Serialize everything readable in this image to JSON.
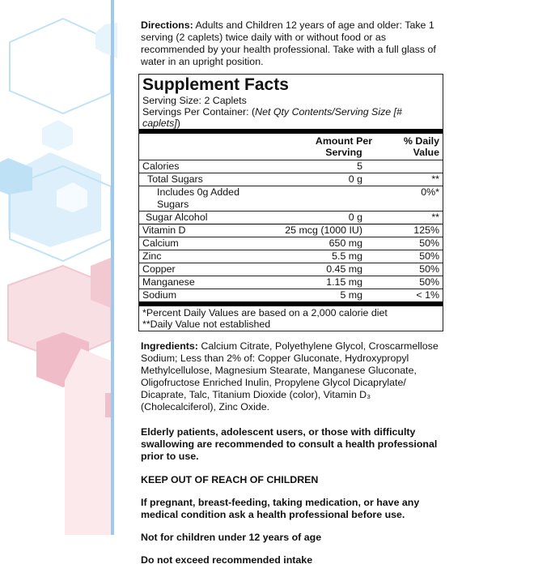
{
  "directions": {
    "label": "Directions:",
    "text": " Adults and Children 12 years of age and older: Take 1 serving (2 caplets) twice daily with or without food or as recommended by your health professional. Take with a full glass of water in an upright position."
  },
  "facts": {
    "title": "Supplement Facts",
    "serving_size": "Serving Size: 2 Caplets",
    "servings_per_container_label": "Servings Per Container: (",
    "servings_per_container_value": "Net Qty Contents/Serving Size [# caplets]",
    "servings_per_container_end": ")",
    "col_amount": "Amount Per Serving",
    "col_dv": "% Daily Value",
    "rows": [
      {
        "name": "Calories",
        "amount": "5",
        "dv": ""
      },
      {
        "name": "Total Sugars",
        "amount": "0 g",
        "dv": "**"
      },
      {
        "name": "Includes 0g Added Sugars",
        "amount": "",
        "dv": "0%*"
      },
      {
        "name": "Sugar Alcohol",
        "amount": "0 g",
        "dv": "**"
      },
      {
        "name": "Vitamin D",
        "amount": "25 mcg (1000 IU)",
        "dv": "125%"
      },
      {
        "name": "Calcium",
        "amount": "650 mg",
        "dv": "50%"
      },
      {
        "name": "Zinc",
        "amount": "5.5 mg",
        "dv": "50%"
      },
      {
        "name": "Copper",
        "amount": "0.45 mg",
        "dv": "50%"
      },
      {
        "name": "Manganese",
        "amount": "1.15 mg",
        "dv": "50%"
      },
      {
        "name": "Sodium",
        "amount": "5 mg",
        "dv": "< 1%"
      }
    ],
    "footnote1": " *Percent Daily Values are based on a 2,000 calorie diet",
    "footnote2": "**Daily Value not established"
  },
  "ingredients": {
    "label": "Ingredients:",
    "text": " Calcium Citrate, Polyethylene Glycol, Croscarmellose Sodium; Less than 2% of: Copper Gluconate, Hydroxypropyl Methylcellulose, Magnesium Stearate, Manganese Gluconate, Oligofructose Enriched Inulin, Propylene Glycol Dicaprylate/ Dicaprate, Talc, Titanium Dioxide (color), Vitamin D₃ (Cholecalciferol), Zinc Oxide."
  },
  "warnings": [
    "Elderly patients, adolescent users, or those with difficulty swallowing are recommended to consult a health professional prior to use.",
    "KEEP OUT OF REACH OF CHILDREN",
    "If pregnant, breast-feeding, taking medication, or have any medical condition ask a health professional before use.",
    "Not for children under 12 years of age",
    "Do not exceed recommended intake"
  ],
  "colors": {
    "accent_blue": "#9ec9ec",
    "accent_pink": "#e9a9b6"
  }
}
